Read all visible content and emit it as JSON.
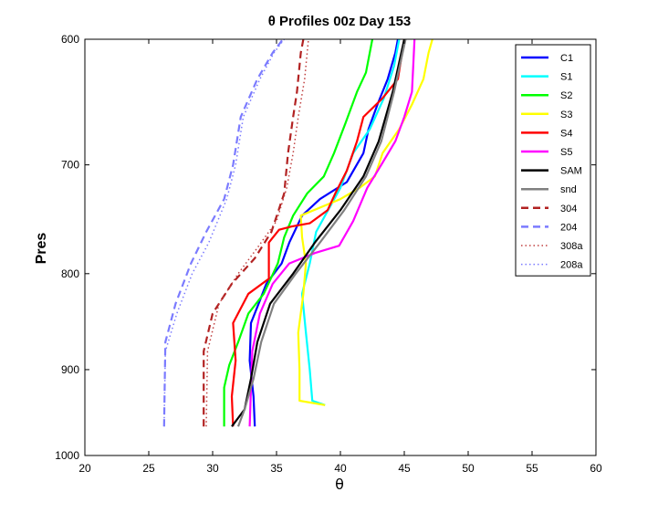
{
  "chart_data": {
    "type": "line",
    "title": "θ Profiles 00z Day 153",
    "xlabel": "θ",
    "ylabel": "Pres",
    "xlim": [
      20,
      60
    ],
    "ylim": [
      600,
      1000
    ],
    "y_reversed": true,
    "x_ticks": [
      "20",
      "25",
      "30",
      "35",
      "40",
      "45",
      "50",
      "55",
      "60"
    ],
    "y_ticks": [
      "600",
      "700",
      "800",
      "900",
      "1000"
    ],
    "y_tick_values": [
      600,
      700,
      800,
      900,
      1000
    ],
    "grid": false,
    "legend_position": "top-right",
    "series": [
      {
        "name": "C1",
        "color": "#0000ff",
        "style": "solid",
        "points": [
          [
            33.3,
            965
          ],
          [
            33.2,
            930
          ],
          [
            32.9,
            890
          ],
          [
            33.0,
            850
          ],
          [
            33.6,
            830
          ],
          [
            34.2,
            810
          ],
          [
            35.4,
            790
          ],
          [
            36.0,
            770
          ],
          [
            37.0,
            745
          ],
          [
            38.4,
            730
          ],
          [
            40.5,
            715
          ],
          [
            41.8,
            690
          ],
          [
            42.2,
            670
          ],
          [
            42.9,
            650
          ],
          [
            43.7,
            630
          ],
          [
            44.3,
            610
          ],
          [
            44.5,
            600
          ]
        ]
      },
      {
        "name": "S1",
        "color": "#00ffff",
        "style": "solid",
        "points": [
          [
            38.8,
            940
          ],
          [
            37.8,
            935
          ],
          [
            37.6,
            900
          ],
          [
            37.3,
            860
          ],
          [
            37.0,
            820
          ],
          [
            37.6,
            790
          ],
          [
            38.1,
            760
          ],
          [
            38.8,
            745
          ],
          [
            40.0,
            720
          ],
          [
            41.0,
            690
          ],
          [
            42.3,
            670
          ],
          [
            43.4,
            645
          ],
          [
            44.2,
            620
          ],
          [
            44.6,
            600
          ]
        ]
      },
      {
        "name": "S2",
        "color": "#00ff00",
        "style": "solid",
        "points": [
          [
            30.9,
            965
          ],
          [
            30.9,
            920
          ],
          [
            31.3,
            895
          ],
          [
            32.0,
            870
          ],
          [
            32.8,
            840
          ],
          [
            34.0,
            820
          ],
          [
            35.1,
            790
          ],
          [
            35.6,
            765
          ],
          [
            36.3,
            745
          ],
          [
            37.4,
            725
          ],
          [
            38.7,
            710
          ],
          [
            39.5,
            690
          ],
          [
            40.4,
            665
          ],
          [
            41.3,
            640
          ],
          [
            42.0,
            625
          ],
          [
            42.5,
            600
          ]
        ]
      },
      {
        "name": "S3",
        "color": "#ffff00",
        "style": "solid",
        "points": [
          [
            38.8,
            940
          ],
          [
            36.8,
            935
          ],
          [
            36.8,
            900
          ],
          [
            36.7,
            860
          ],
          [
            37.1,
            820
          ],
          [
            37.3,
            790
          ],
          [
            37.0,
            765
          ],
          [
            36.9,
            745
          ],
          [
            40.0,
            730
          ],
          [
            41.5,
            720
          ],
          [
            42.7,
            710
          ],
          [
            43.3,
            690
          ],
          [
            44.6,
            670
          ],
          [
            45.6,
            650
          ],
          [
            46.5,
            630
          ],
          [
            46.9,
            610
          ],
          [
            47.2,
            600
          ]
        ]
      },
      {
        "name": "S4",
        "color": "#ff0000",
        "style": "solid",
        "points": [
          [
            31.6,
            965
          ],
          [
            31.5,
            930
          ],
          [
            31.8,
            890
          ],
          [
            31.6,
            850
          ],
          [
            32.8,
            820
          ],
          [
            34.4,
            805
          ],
          [
            34.4,
            770
          ],
          [
            35.2,
            758
          ],
          [
            36.2,
            755
          ],
          [
            37.6,
            752
          ],
          [
            39.0,
            740
          ],
          [
            39.6,
            725
          ],
          [
            40.5,
            705
          ],
          [
            41.3,
            680
          ],
          [
            41.8,
            660
          ],
          [
            43.3,
            645
          ],
          [
            44.5,
            630
          ],
          [
            45.0,
            600
          ]
        ]
      },
      {
        "name": "S5",
        "color": "#ff00ff",
        "style": "solid",
        "points": [
          [
            32.9,
            965
          ],
          [
            33.0,
            920
          ],
          [
            33.1,
            880
          ],
          [
            33.7,
            840
          ],
          [
            34.7,
            810
          ],
          [
            36.0,
            790
          ],
          [
            38.0,
            780
          ],
          [
            39.9,
            773
          ],
          [
            41.0,
            750
          ],
          [
            42.1,
            720
          ],
          [
            43.2,
            700
          ],
          [
            44.3,
            680
          ],
          [
            45.0,
            660
          ],
          [
            45.6,
            640
          ],
          [
            45.7,
            620
          ],
          [
            45.8,
            600
          ]
        ]
      },
      {
        "name": "SAM",
        "color": "#000000",
        "style": "solid",
        "points": [
          [
            31.5,
            965
          ],
          [
            32.5,
            945
          ],
          [
            33.0,
            910
          ],
          [
            33.5,
            870
          ],
          [
            34.5,
            830
          ],
          [
            36.3,
            800
          ],
          [
            38.0,
            770
          ],
          [
            40.0,
            740
          ],
          [
            41.8,
            710
          ],
          [
            43.0,
            680
          ],
          [
            44.1,
            640
          ],
          [
            45.0,
            600
          ]
        ]
      },
      {
        "name": "snd",
        "color": "#808080",
        "style": "solid",
        "points": [
          [
            32.0,
            965
          ],
          [
            32.5,
            945
          ],
          [
            33.2,
            910
          ],
          [
            33.8,
            870
          ],
          [
            34.8,
            830
          ],
          [
            36.5,
            800
          ],
          [
            38.4,
            770
          ],
          [
            40.3,
            740
          ],
          [
            42.0,
            710
          ],
          [
            43.2,
            680
          ],
          [
            44.2,
            640
          ],
          [
            45.1,
            600
          ]
        ]
      },
      {
        "name": "304",
        "color": "#b22222",
        "style": "dashed",
        "points": [
          [
            29.3,
            965
          ],
          [
            29.3,
            880
          ],
          [
            30.0,
            840
          ],
          [
            31.5,
            810
          ],
          [
            33.3,
            785
          ],
          [
            34.6,
            760
          ],
          [
            35.6,
            725
          ],
          [
            35.9,
            690
          ],
          [
            36.3,
            660
          ],
          [
            36.6,
            640
          ],
          [
            36.9,
            610
          ],
          [
            37.1,
            600
          ]
        ]
      },
      {
        "name": "204",
        "color": "#7b7bff",
        "style": "dashed",
        "points": [
          [
            26.2,
            965
          ],
          [
            26.3,
            870
          ],
          [
            27.1,
            830
          ],
          [
            28.3,
            790
          ],
          [
            29.5,
            760
          ],
          [
            30.9,
            730
          ],
          [
            31.6,
            700
          ],
          [
            32.2,
            660
          ],
          [
            33.5,
            630
          ],
          [
            34.7,
            610
          ],
          [
            35.5,
            600
          ]
        ]
      },
      {
        "name": "308a",
        "color": "#c04040",
        "style": "dotted",
        "points": [
          [
            29.5,
            965
          ],
          [
            29.6,
            880
          ],
          [
            30.5,
            830
          ],
          [
            32.0,
            800
          ],
          [
            33.5,
            775
          ],
          [
            35.0,
            750
          ],
          [
            35.8,
            720
          ],
          [
            36.3,
            690
          ],
          [
            36.7,
            660
          ],
          [
            37.2,
            630
          ],
          [
            37.5,
            600
          ]
        ]
      },
      {
        "name": "208a",
        "color": "#7b7bff",
        "style": "dotted",
        "points": [
          [
            26.2,
            965
          ],
          [
            26.3,
            880
          ],
          [
            27.2,
            840
          ],
          [
            28.4,
            800
          ],
          [
            29.7,
            770
          ],
          [
            31.1,
            730
          ],
          [
            31.8,
            700
          ],
          [
            32.4,
            660
          ],
          [
            33.7,
            630
          ],
          [
            34.8,
            610
          ],
          [
            35.6,
            600
          ]
        ]
      }
    ]
  }
}
